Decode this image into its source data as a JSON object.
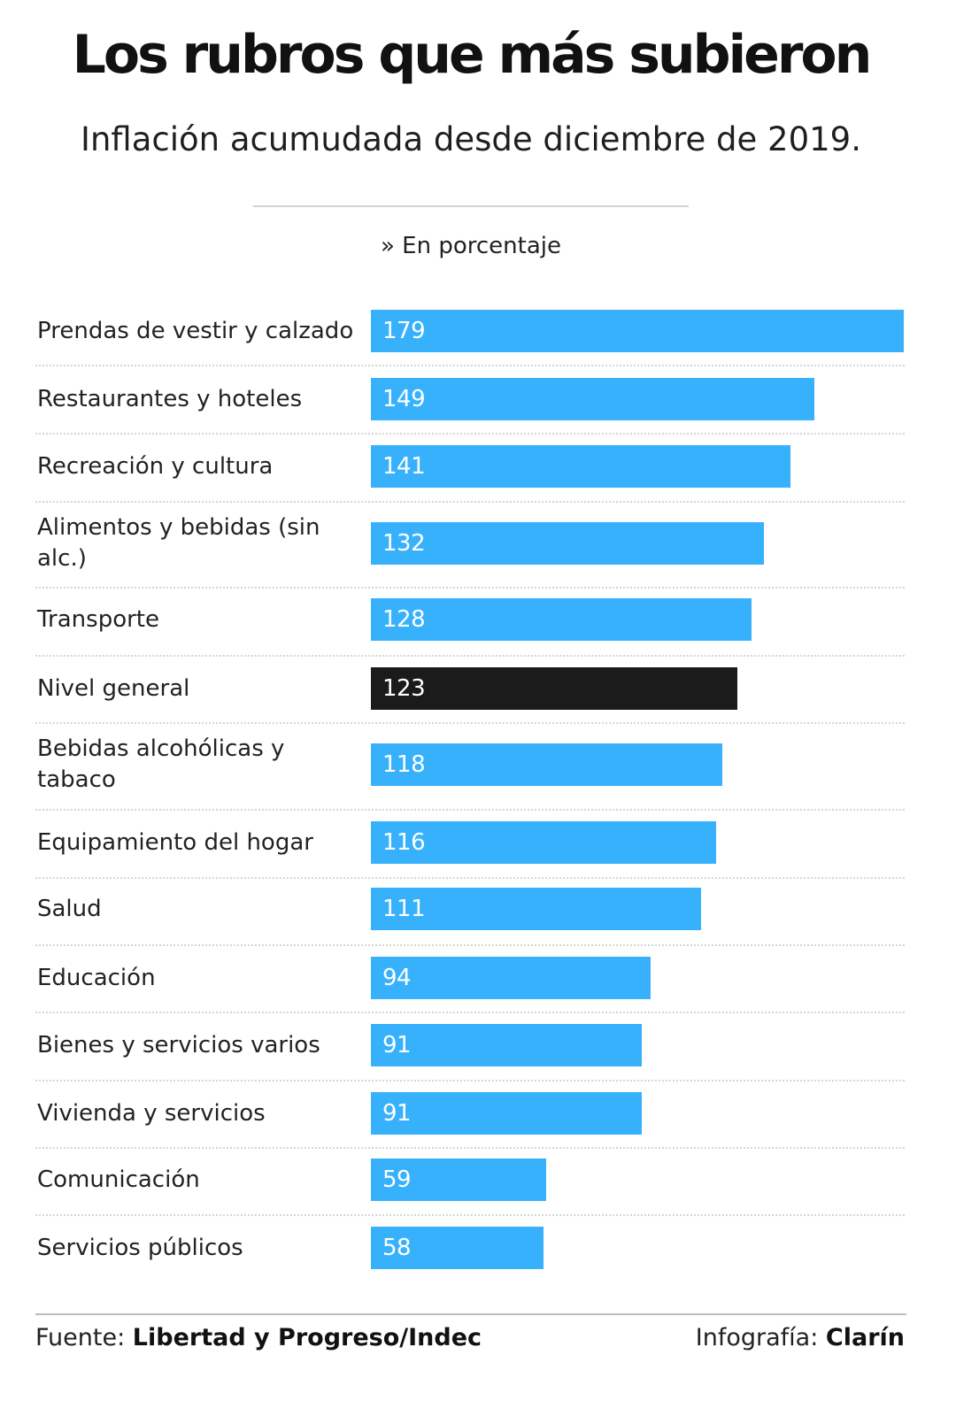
{
  "header": {
    "title": "Los rubros que más subieron",
    "subtitle": "Inflación acumudada desde diciembre de 2019.",
    "unit_note": "» En porcentaje"
  },
  "colors": {
    "bar_default": "#38b1fd",
    "bar_highlight": "#1b1b1b"
  },
  "chart_data": {
    "type": "bar",
    "orientation": "horizontal",
    "categories": [
      "Prendas de vestir y calzado",
      "Restaurantes y hoteles",
      "Recreación y cultura",
      "Alimentos y bebidas (sin alc.)",
      "Transporte",
      "Nivel general",
      "Bebidas alcohólicas y tabaco",
      "Equipamiento del hogar",
      "Salud",
      "Educación",
      "Bienes y servicios varios",
      "Vivienda y servicios",
      "Comunicación",
      "Servicios públicos"
    ],
    "values": [
      179,
      149,
      141,
      132,
      128,
      123,
      118,
      116,
      111,
      94,
      91,
      91,
      59,
      58
    ],
    "highlight": [
      "Nivel general"
    ],
    "data_labels": "inside-bar",
    "grid": false,
    "xlim": [
      0,
      179
    ]
  },
  "footer": {
    "source_label": "Fuente:",
    "source_value": "Libertad y Progreso/Indec",
    "credit_label": "Infografía:",
    "credit_value": "Clarín"
  }
}
